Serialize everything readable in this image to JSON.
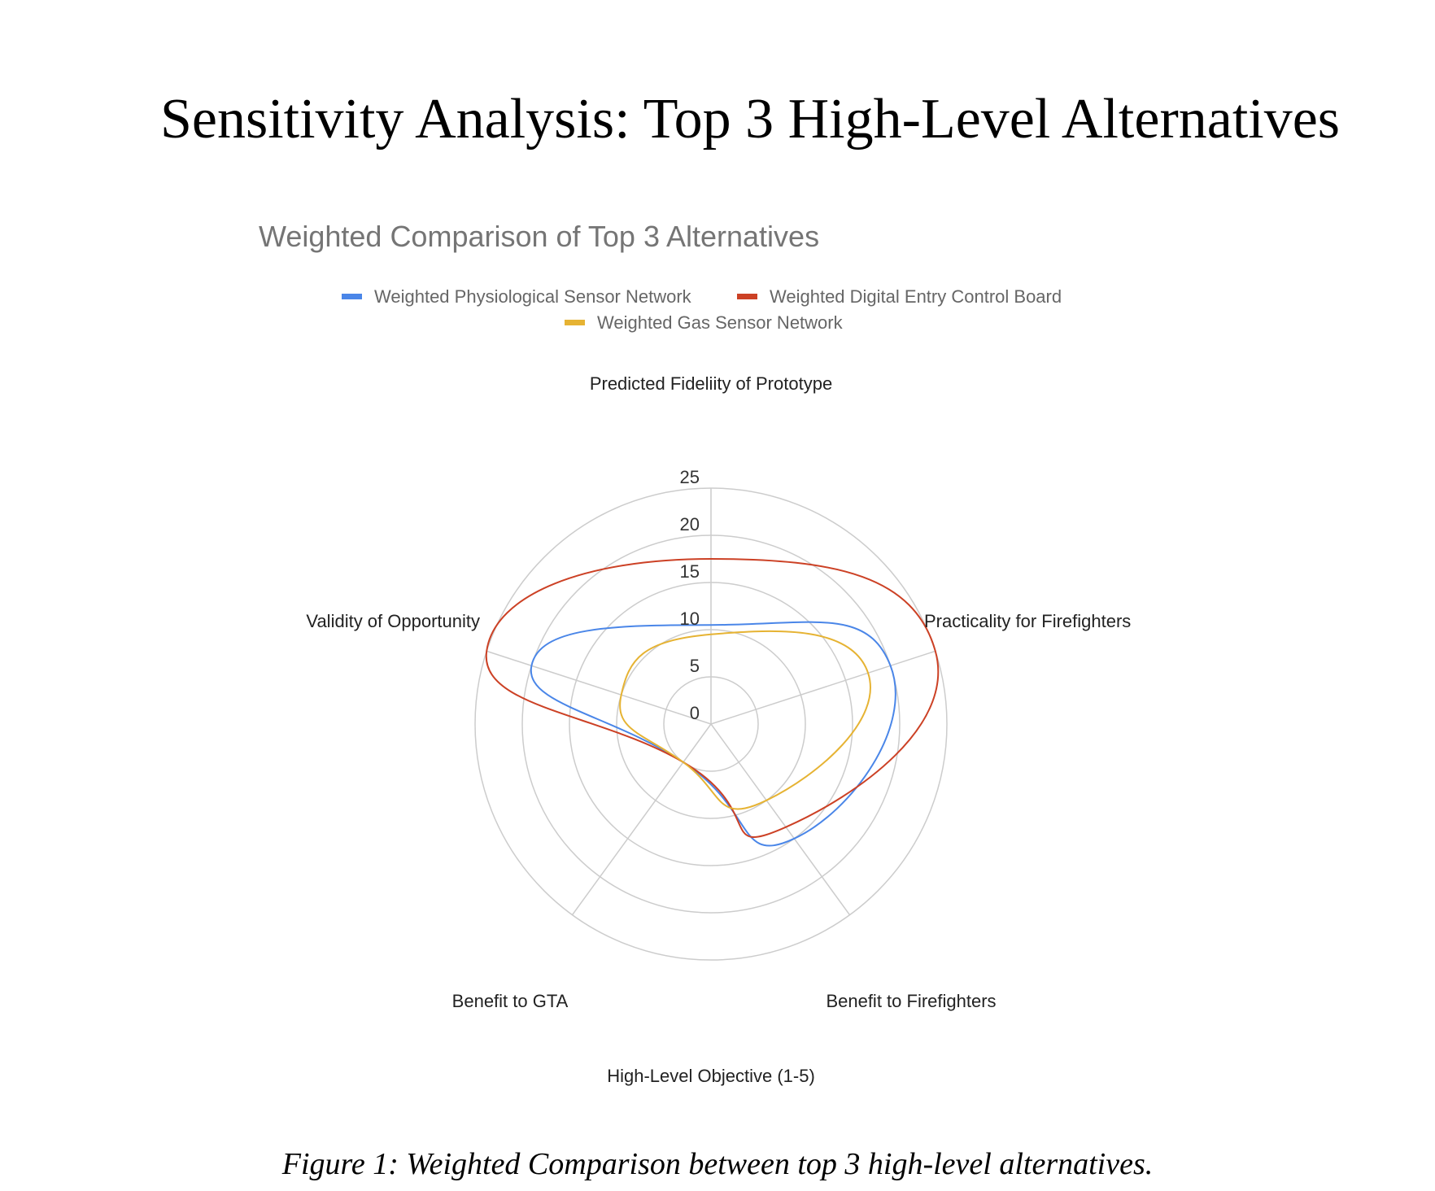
{
  "document": {
    "heading": "Sensitivity Analysis: Top 3 High-Level Alternatives",
    "caption": "Figure 1: Weighted Comparison between top 3 high-level alternatives."
  },
  "chart_data": {
    "type": "radar",
    "title": "Weighted Comparison of Top 3 Alternatives",
    "xlabel": "High-Level Objective (1-5)",
    "categories": [
      "Predicted Fideliity of Prototype",
      "Practicality for Firefighters",
      "Benefit to Firefighters",
      "Benefit to GTA",
      "Validity of Opportunity"
    ],
    "rlim": [
      0,
      25
    ],
    "ticks": [
      "0",
      "5",
      "10",
      "15",
      "20",
      "25"
    ],
    "grid": true,
    "legend": "top",
    "series": [
      {
        "name": "Weighted Physiological Sensor Network",
        "color": "#4a86e8",
        "values": [
          10.5,
          20,
          15,
          5,
          20
        ]
      },
      {
        "name": "Weighted Digital Entry Control Board",
        "color": "#cc4125",
        "values": [
          17.5,
          25,
          13.5,
          5,
          25
        ]
      },
      {
        "name": "Weighted Gas Sensor Network",
        "color": "#e6b333",
        "values": [
          9.5,
          17.5,
          10,
          5,
          10
        ]
      }
    ]
  }
}
